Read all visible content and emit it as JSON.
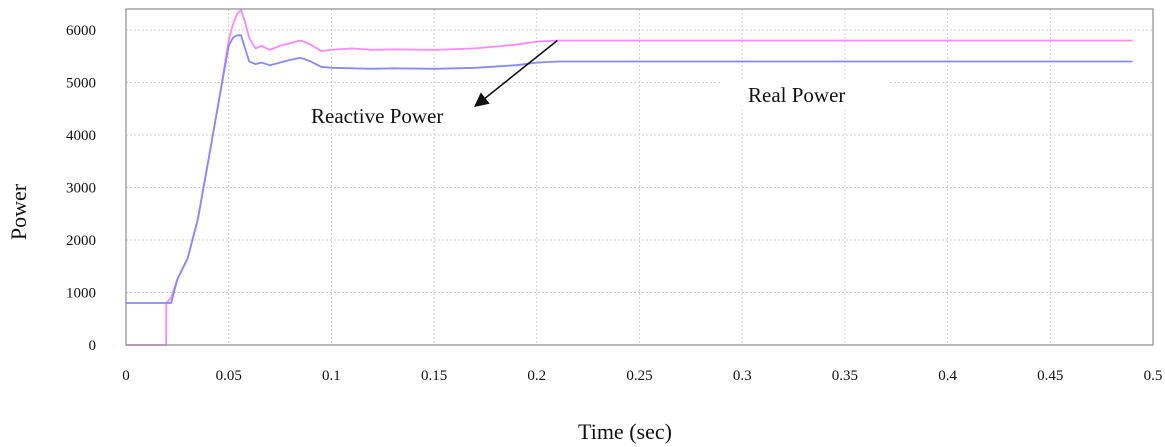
{
  "chart_data": {
    "type": "line",
    "title": "",
    "xlabel": "Time (sec)",
    "ylabel": "Power",
    "xlim": [
      0,
      0.5
    ],
    "ylim": [
      0,
      6400
    ],
    "x_ticks": [
      0,
      0.05,
      0.1,
      0.15,
      0.2,
      0.25,
      0.3,
      0.35,
      0.4,
      0.45,
      0.5
    ],
    "x_tick_labels": [
      "0",
      "0.05",
      "0.1",
      "0.15",
      "0.2",
      "0.25",
      "0.3",
      "0.35",
      "0.4",
      "0.45",
      "0.5"
    ],
    "y_ticks": [
      0,
      1000,
      2000,
      3000,
      4000,
      5000,
      6000
    ],
    "y_tick_labels": [
      "0",
      "1000",
      "2000",
      "3000",
      "4000",
      "5000",
      "6000"
    ],
    "grid": true,
    "legend": "none",
    "series": [
      {
        "name": "",
        "color": "#ff88ff",
        "x": [
          0,
          0.0195,
          0.0196,
          0.022,
          0.025,
          0.03,
          0.035,
          0.04,
          0.045,
          0.05,
          0.052,
          0.054,
          0.056,
          0.058,
          0.06,
          0.063,
          0.066,
          0.07,
          0.075,
          0.08,
          0.085,
          0.09,
          0.095,
          0.1,
          0.11,
          0.12,
          0.13,
          0.15,
          0.17,
          0.19,
          0.2,
          0.21,
          0.25,
          0.3,
          0.35,
          0.4,
          0.45,
          0.49
        ],
        "y": [
          0,
          0,
          800,
          900,
          1250,
          1650,
          2400,
          3500,
          4600,
          5800,
          6100,
          6300,
          6380,
          6150,
          5850,
          5650,
          5700,
          5620,
          5700,
          5750,
          5800,
          5720,
          5600,
          5620,
          5650,
          5620,
          5630,
          5620,
          5650,
          5720,
          5780,
          5800,
          5800,
          5800,
          5800,
          5800,
          5800,
          5800
        ]
      },
      {
        "name": "",
        "color": "#8888ff",
        "x": [
          0,
          0.0195,
          0.022,
          0.025,
          0.03,
          0.035,
          0.04,
          0.045,
          0.05,
          0.052,
          0.054,
          0.056,
          0.058,
          0.06,
          0.063,
          0.066,
          0.07,
          0.075,
          0.08,
          0.085,
          0.09,
          0.095,
          0.1,
          0.11,
          0.12,
          0.13,
          0.15,
          0.17,
          0.19,
          0.2,
          0.21,
          0.25,
          0.3,
          0.35,
          0.4,
          0.45,
          0.49
        ],
        "y": [
          800,
          800,
          800,
          1250,
          1650,
          2400,
          3500,
          4600,
          5700,
          5850,
          5900,
          5900,
          5650,
          5400,
          5350,
          5380,
          5330,
          5380,
          5430,
          5470,
          5400,
          5300,
          5280,
          5270,
          5260,
          5270,
          5260,
          5280,
          5330,
          5380,
          5400,
          5400,
          5400,
          5400,
          5400,
          5400,
          5400
        ]
      }
    ],
    "annotations": [
      {
        "text": "Reactive Power",
        "arrow_from": [
          0.21,
          5800
        ],
        "arrow_to": [
          0.17,
          4550
        ]
      },
      {
        "text": "Real Power"
      }
    ]
  }
}
